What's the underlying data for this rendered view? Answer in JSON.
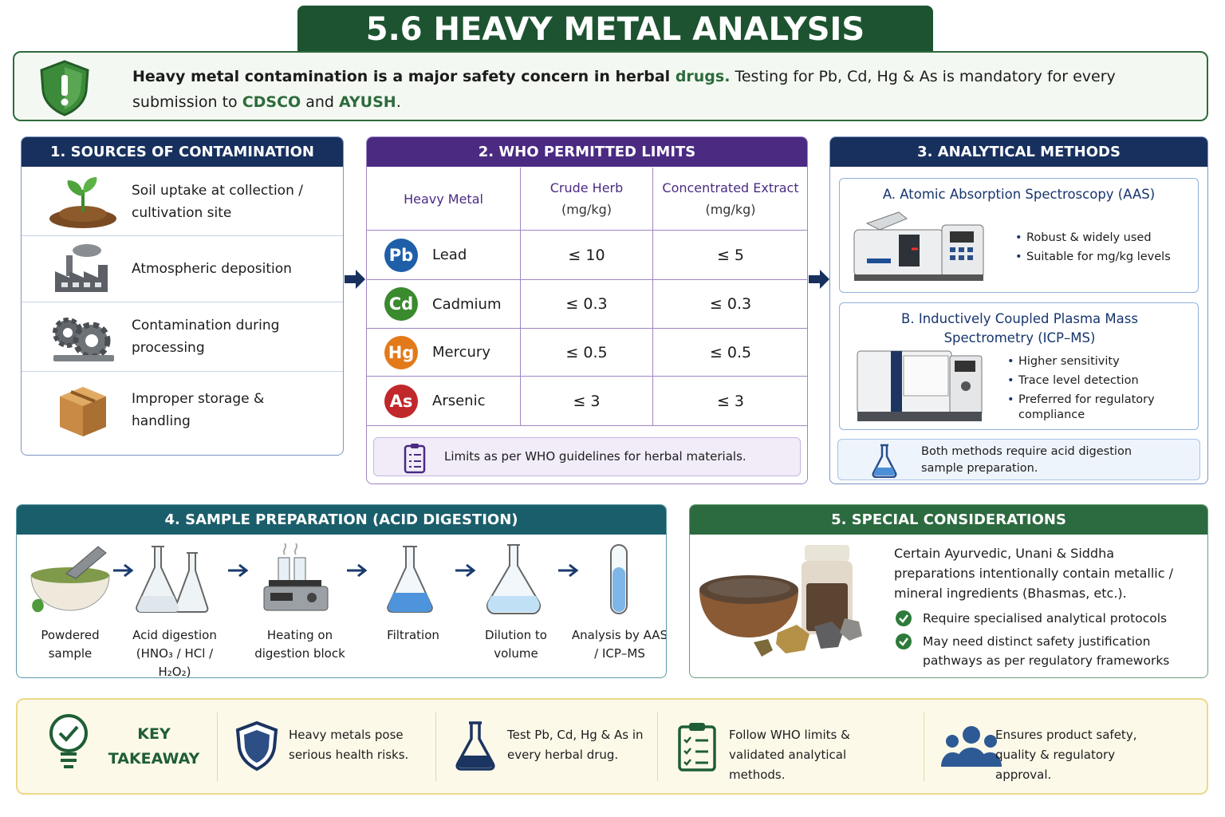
{
  "header": {
    "title": "5.6 HEAVY METAL ANALYSIS"
  },
  "intro": {
    "parts": [
      "Heavy metal contamination is a major safety concern in herbal ",
      "drugs.",
      " Testing for Pb, Cd, Hg & As is mandatory for every submission to ",
      "CDSCO",
      " and ",
      "AYUSH",
      "."
    ]
  },
  "sources": {
    "title": "1. SOURCES OF CONTAMINATION",
    "items": [
      "Soil uptake at collection / cultivation site",
      "Atmospheric deposition",
      "Contamination during processing",
      "Improper storage & handling"
    ]
  },
  "limits": {
    "title": "2. WHO PERMITTED LIMITS",
    "columns": [
      {
        "label": "Heavy Metal"
      },
      {
        "label": "Crude Herb",
        "unit": "(mg/kg)"
      },
      {
        "label": "Concentrated Extract",
        "unit": "(mg/kg)"
      }
    ],
    "rows": [
      {
        "symbol": "Pb",
        "name": "Lead",
        "crude": "≤ 10",
        "extract": "≤ 5"
      },
      {
        "symbol": "Cd",
        "name": "Cadmium",
        "crude": "≤ 0.3",
        "extract": "≤ 0.3"
      },
      {
        "symbol": "Hg",
        "name": "Mercury",
        "crude": "≤ 0.5",
        "extract": "≤ 0.5"
      },
      {
        "symbol": "As",
        "name": "Arsenic",
        "crude": "≤ 3",
        "extract": "≤ 3"
      }
    ],
    "note": "Limits as per WHO guidelines for herbal materials."
  },
  "methods": {
    "title": "3. ANALYTICAL METHODS",
    "aas": {
      "title": "A. Atomic Absorption Spectroscopy (AAS)",
      "bullets": [
        "Robust & widely used",
        "Suitable for mg/kg levels"
      ]
    },
    "icpms": {
      "title": "B. Inductively Coupled Plasma Mass Spectrometry (ICP–MS)",
      "bullets": [
        "Higher sensitivity",
        "Trace level detection",
        "Preferred for regulatory compliance"
      ]
    },
    "note": "Both methods require acid digestion sample preparation."
  },
  "prep": {
    "title": "4. SAMPLE PREPARATION (ACID DIGESTION)",
    "steps": [
      "Powdered sample",
      "Acid digestion (HNO₃ / HCl / H₂O₂)",
      "Heating on digestion block",
      "Filtration",
      "Dilution to volume",
      "Analysis by AAS / ICP–MS"
    ]
  },
  "special": {
    "title": "5. SPECIAL CONSIDERATIONS",
    "text": "Certain Ayurvedic, Unani & Siddha preparations intentionally contain metallic / mineral ingredients (Bhasmas, etc.).",
    "bullets": [
      "Require specialised analytical protocols",
      "May need distinct safety justification pathways as per regulatory frameworks"
    ]
  },
  "takeaway": {
    "title": "KEY TAKEAWAY",
    "items": [
      "Heavy metals pose serious health risks.",
      "Test Pb, Cd, Hg & As in every herbal drug.",
      "Follow WHO limits & validated analytical methods.",
      "Ensures product safety, quality & regulatory approval."
    ]
  }
}
